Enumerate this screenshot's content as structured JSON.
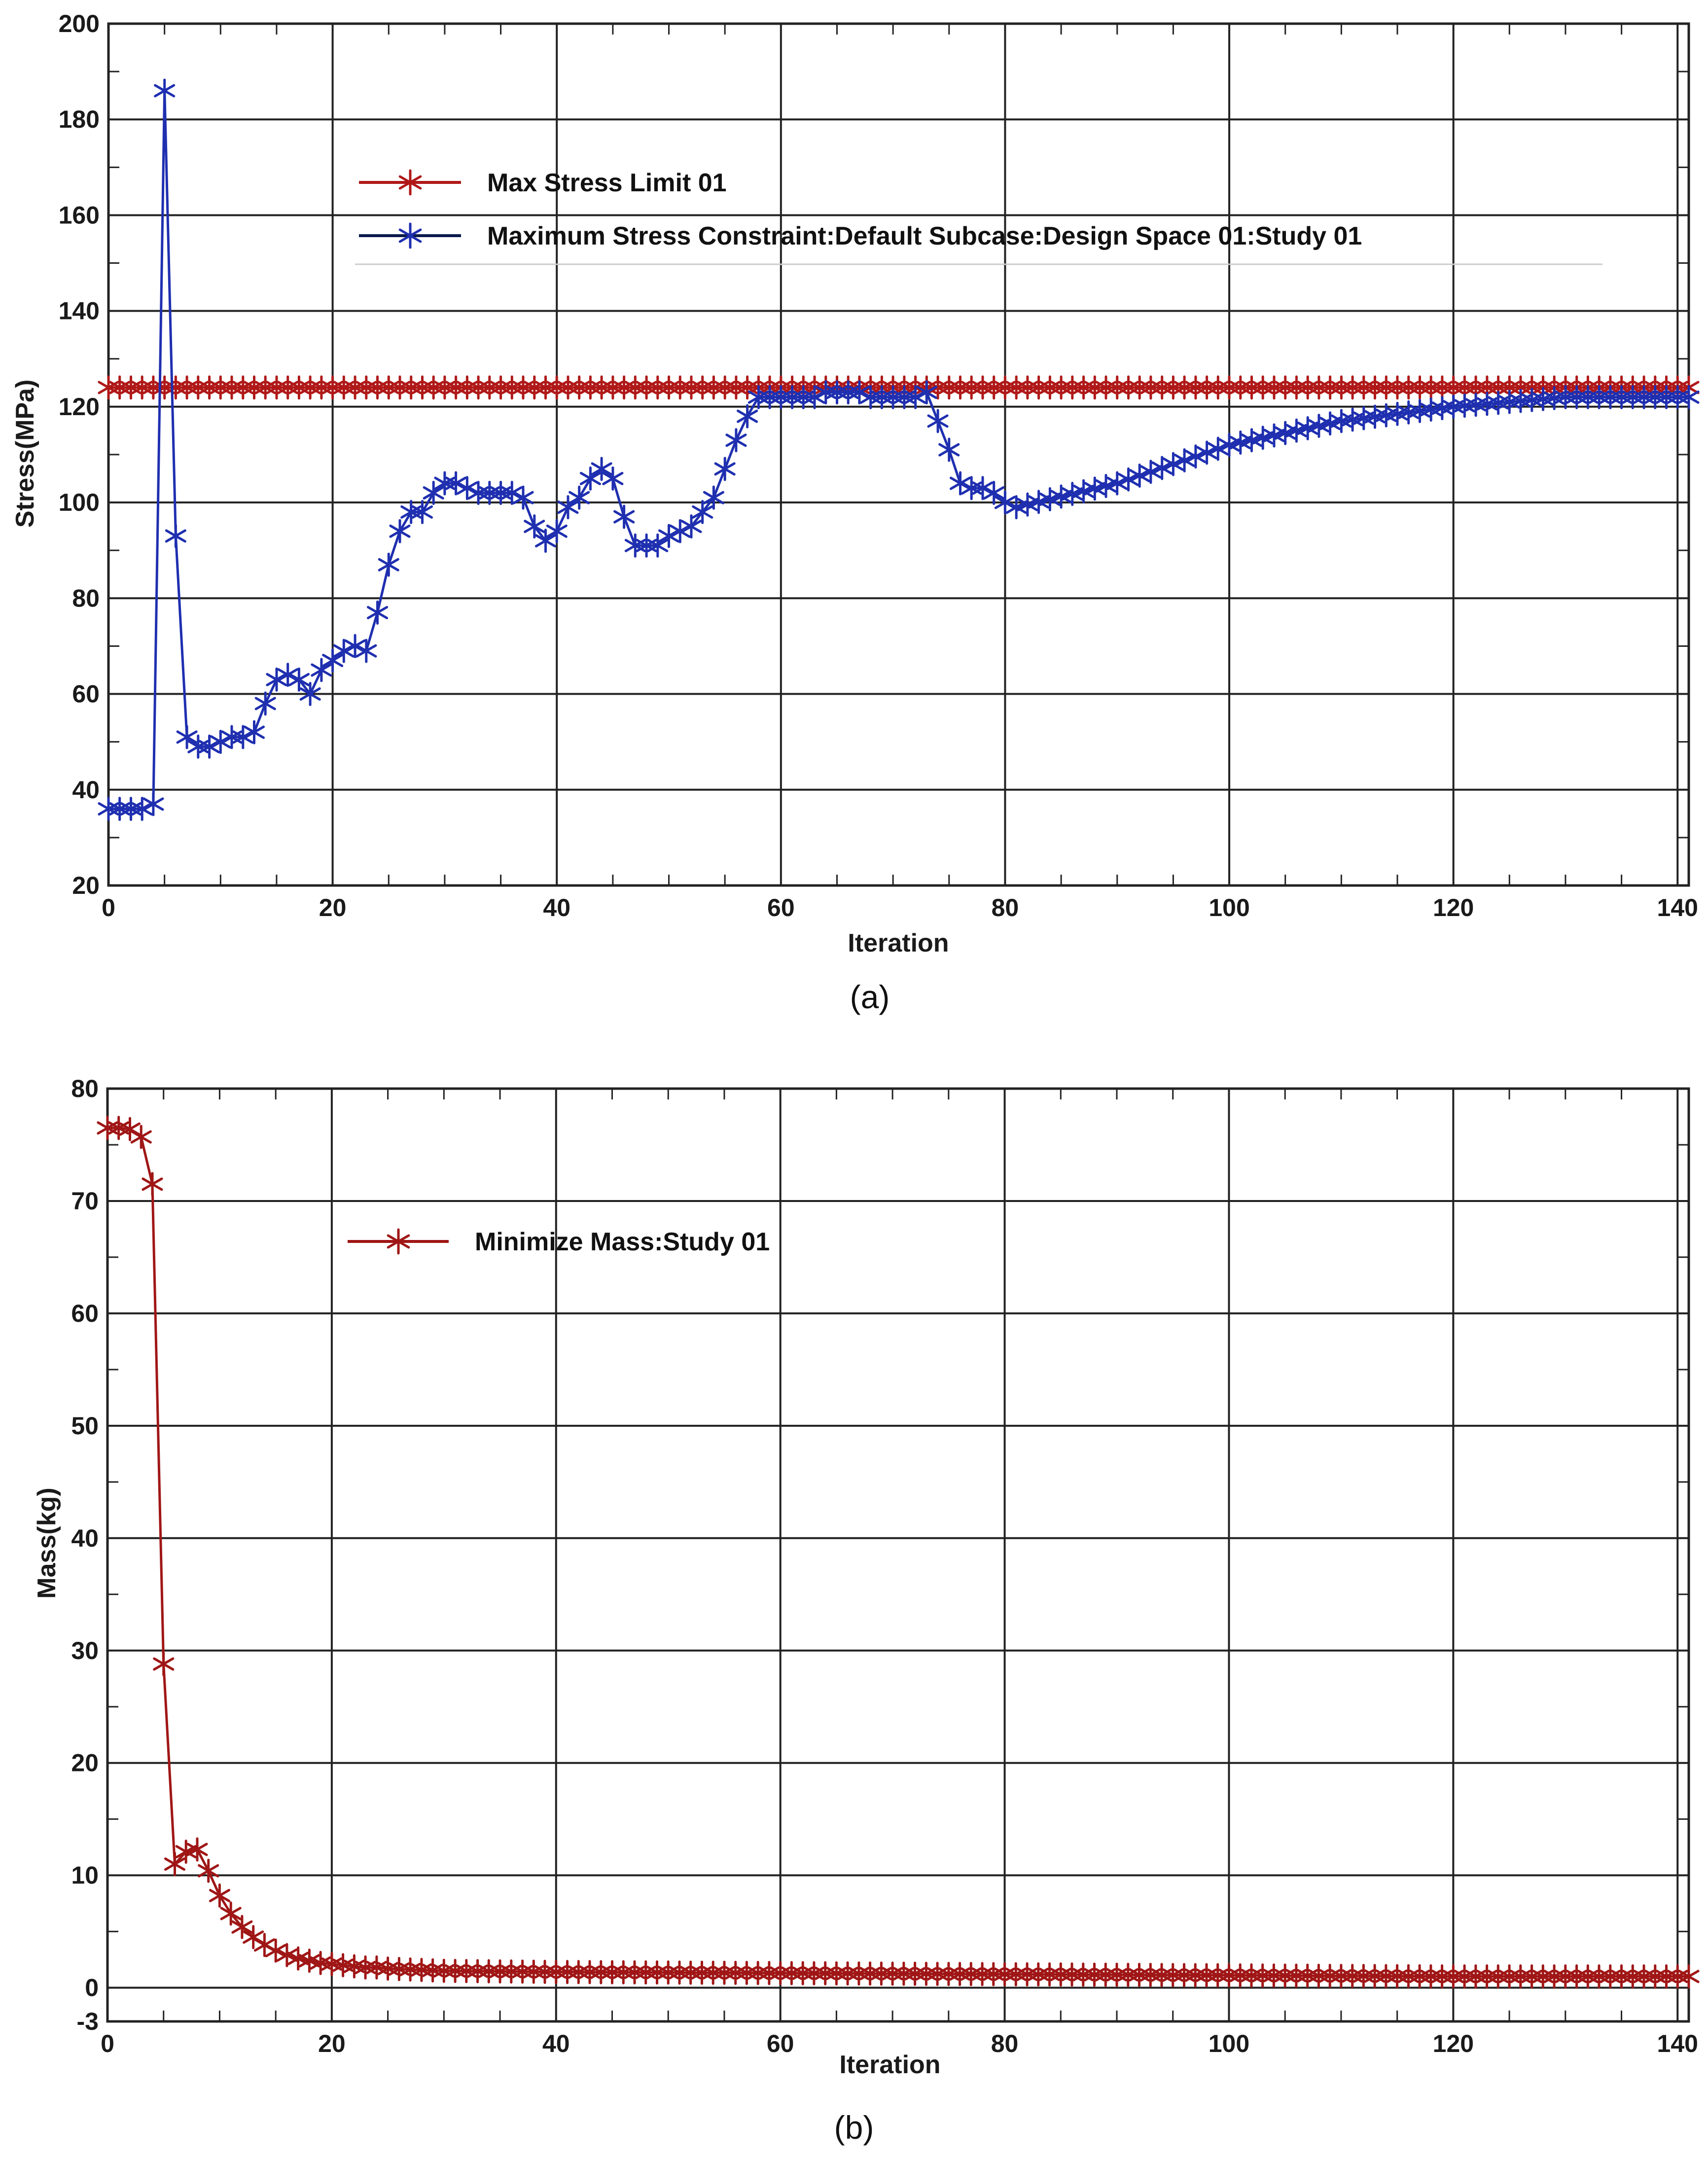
{
  "colors": {
    "limit_red": "#b01818",
    "stress_blue": "#1f2fb0",
    "mass_red": "#a01616",
    "grid": "#222222"
  },
  "marker": "star",
  "chart_data": [
    {
      "type": "line",
      "panel_label": "(a)",
      "xlabel": "Iteration",
      "ylabel": "Stress(MPa)",
      "xlim": [
        0,
        141
      ],
      "ylim": [
        20,
        200
      ],
      "x_ticks": [
        0,
        20,
        40,
        60,
        80,
        100,
        120,
        140
      ],
      "y_ticks": [
        20,
        40,
        60,
        80,
        100,
        120,
        140,
        160,
        180,
        200
      ],
      "grid": true,
      "legend_position": "upper center",
      "series": [
        {
          "name": "Max Stress Limit 01",
          "color": "#b01818",
          "x": [
            0,
            141
          ],
          "y": [
            124,
            124
          ]
        },
        {
          "name": "Maximum Stress Constraint:Default Subcase:Design Space 01:Study 01",
          "color": "#1f2fb0",
          "x": [
            0,
            1,
            2,
            3,
            4,
            5,
            6,
            7,
            8,
            9,
            10,
            11,
            12,
            13,
            14,
            15,
            16,
            17,
            18,
            19,
            20,
            21,
            22,
            23,
            24,
            25,
            26,
            27,
            28,
            29,
            30,
            31,
            32,
            33,
            34,
            35,
            36,
            37,
            38,
            39,
            40,
            41,
            42,
            43,
            44,
            45,
            46,
            47,
            48,
            49,
            50,
            51,
            52,
            53,
            54,
            55,
            56,
            57,
            58,
            59,
            60,
            61,
            62,
            63,
            64,
            65,
            66,
            67,
            68,
            69,
            70,
            71,
            72,
            73,
            74,
            75,
            76,
            77,
            78,
            79,
            80,
            81,
            90,
            100,
            110,
            120,
            130,
            141
          ],
          "y": [
            36,
            36,
            36,
            36,
            37,
            186,
            93,
            51,
            49,
            49,
            50,
            51,
            51,
            52,
            58,
            63,
            64,
            63,
            60,
            65,
            67,
            69,
            70,
            69,
            77,
            87,
            94,
            98,
            98,
            102,
            104,
            104,
            103,
            102,
            102,
            102,
            102,
            101,
            95,
            92,
            94,
            99,
            101,
            105,
            107,
            105,
            97,
            91,
            91,
            91,
            93,
            94,
            95,
            98,
            101,
            107,
            113,
            118,
            122,
            122,
            122,
            122,
            122,
            122,
            123,
            123,
            123,
            123,
            122,
            122,
            122,
            122,
            122,
            123,
            117,
            111,
            104,
            103,
            103,
            102,
            100,
            99,
            104,
            112,
            117,
            120,
            122,
            122
          ]
        }
      ]
    },
    {
      "type": "line",
      "panel_label": "(b)",
      "xlabel": "Iteration",
      "ylabel": "Mass(kg)",
      "xlim": [
        0,
        141
      ],
      "ylim": [
        -3,
        80
      ],
      "x_ticks": [
        0,
        20,
        40,
        60,
        80,
        100,
        120,
        140
      ],
      "y_ticks": [
        -3,
        0,
        10,
        20,
        30,
        40,
        50,
        60,
        70,
        80
      ],
      "grid": true,
      "legend_position": "upper left",
      "series": [
        {
          "name": "Minimize Mass:Study 01",
          "color": "#a01616",
          "x": [
            0,
            1,
            2,
            3,
            4,
            5,
            6,
            7,
            8,
            9,
            10,
            11,
            12,
            13,
            14,
            15,
            16,
            17,
            18,
            19,
            20,
            21,
            22,
            23,
            24,
            25,
            30,
            40,
            60,
            80,
            100,
            120,
            141
          ],
          "y": [
            76.5,
            76.5,
            76.4,
            75.7,
            71.5,
            28.8,
            11.0,
            12.1,
            12.3,
            10.4,
            8.2,
            6.6,
            5.4,
            4.5,
            3.8,
            3.3,
            2.9,
            2.6,
            2.4,
            2.2,
            2.1,
            2.0,
            1.9,
            1.8,
            1.8,
            1.7,
            1.5,
            1.4,
            1.3,
            1.2,
            1.1,
            1.0,
            1.0
          ]
        }
      ]
    }
  ]
}
